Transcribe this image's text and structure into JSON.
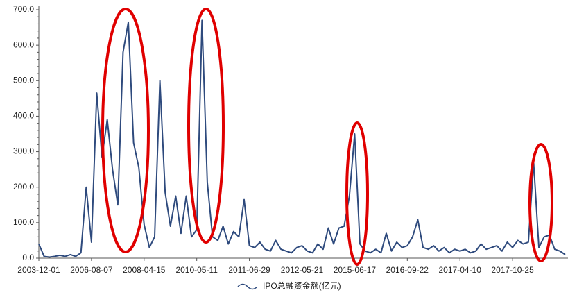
{
  "chart_data": {
    "type": "line",
    "categories": [
      "2003-12-01",
      null,
      null,
      null,
      null,
      null,
      null,
      null,
      null,
      null,
      "2006-08-07",
      null,
      null,
      null,
      null,
      null,
      null,
      null,
      null,
      null,
      "2008-04-15",
      null,
      null,
      null,
      null,
      null,
      null,
      null,
      null,
      null,
      "2010-05-11",
      null,
      null,
      null,
      null,
      null,
      null,
      null,
      null,
      null,
      "2011-06-29",
      null,
      null,
      null,
      null,
      null,
      null,
      null,
      null,
      null,
      "2012-05-21",
      null,
      null,
      null,
      null,
      null,
      null,
      null,
      null,
      null,
      "2015-06-17",
      null,
      null,
      null,
      null,
      null,
      null,
      null,
      null,
      null,
      "2016-09-22",
      null,
      null,
      null,
      null,
      null,
      null,
      null,
      null,
      null,
      "2017-04-10",
      null,
      null,
      null,
      null,
      null,
      null,
      null,
      null,
      null,
      "2017-10-25",
      null,
      null,
      null,
      null,
      null,
      null,
      null,
      null,
      null,
      null
    ],
    "series": [
      {
        "name": "IPO总融资金额(亿元)",
        "color": "#2e4a7d",
        "values": [
          40,
          5,
          3,
          5,
          8,
          5,
          10,
          5,
          15,
          200,
          45,
          465,
          285,
          390,
          250,
          150,
          580,
          665,
          325,
          255,
          95,
          30,
          60,
          500,
          185,
          90,
          175,
          70,
          175,
          60,
          80,
          670,
          215,
          60,
          50,
          90,
          40,
          75,
          60,
          165,
          35,
          30,
          45,
          25,
          20,
          50,
          25,
          20,
          15,
          30,
          35,
          20,
          15,
          40,
          25,
          85,
          40,
          85,
          90,
          175,
          350,
          40,
          20,
          15,
          25,
          15,
          70,
          20,
          45,
          30,
          35,
          60,
          108,
          30,
          25,
          35,
          20,
          30,
          15,
          25,
          20,
          25,
          15,
          20,
          40,
          25,
          30,
          35,
          20,
          45,
          30,
          50,
          40,
          45,
          270,
          30,
          60,
          65,
          25,
          20,
          10
        ]
      }
    ],
    "ylim": [
      0,
      700
    ],
    "yticks": [
      {
        "value": 0,
        "label": "0.0"
      },
      {
        "value": 100,
        "label": "100.0"
      },
      {
        "value": 200,
        "label": "200.0"
      },
      {
        "value": 300,
        "label": "300.0"
      },
      {
        "value": 400,
        "label": "400.0"
      },
      {
        "value": 500,
        "label": "500.0"
      },
      {
        "value": 600,
        "label": "600.0"
      },
      {
        "value": 700,
        "label": "700.0"
      }
    ],
    "legend": "bottom"
  }
}
